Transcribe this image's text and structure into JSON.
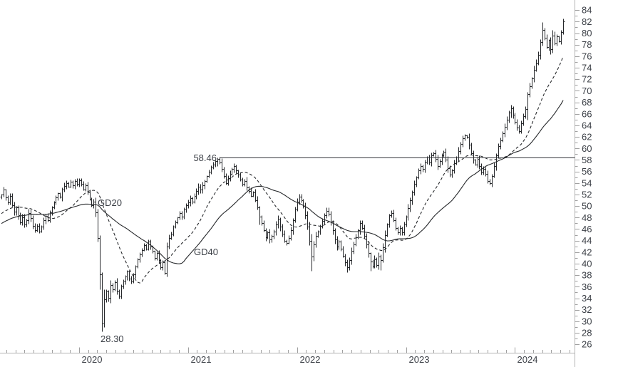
{
  "page": {
    "background": "#ffffff"
  },
  "colors": {
    "bar": "#26282b",
    "ma": "#26282b",
    "axis_line": "#b4b4b4",
    "tick": "#a0a0a0",
    "label": "#3b3f46",
    "annotation_line": "#34373b",
    "background": "#ffffff"
  },
  "annotations": {
    "resistance_label": "58.46",
    "low_label": "28.30",
    "gd20_label": "GD20",
    "gd40_label": "GD40"
  },
  "chart_data": {
    "type": "ohlc",
    "frequency": "weekly",
    "title": "",
    "grid": false,
    "legend": false,
    "ylim": [
      26,
      84
    ],
    "y_axis": {
      "side": "right",
      "min": 26,
      "max": 84,
      "step": 2,
      "minor_step": 1,
      "tick_labels": [
        "84",
        "82",
        "80",
        "78",
        "76",
        "74",
        "72",
        "70",
        "68",
        "66",
        "64",
        "62",
        "60",
        "58",
        "56",
        "54",
        "52",
        "50",
        "48",
        "46",
        "44",
        "42",
        "40",
        "38",
        "36",
        "34",
        "32",
        "30",
        "28",
        "26"
      ]
    },
    "x_axis": {
      "minor_ticks": "monthly",
      "year_ticks": [
        {
          "label": "2020",
          "week": 37
        },
        {
          "label": "2021",
          "week": 89
        },
        {
          "label": "2022",
          "week": 141
        },
        {
          "label": "2023",
          "week": 193
        },
        {
          "label": "2024",
          "week": 245
        }
      ]
    },
    "horizontal_line": {
      "value": 58.46,
      "from_week": 103
    },
    "low_point": {
      "value": 28.3,
      "week": 48
    },
    "overlays": [
      {
        "name": "GD20",
        "kind": "sma",
        "window": 20,
        "style": "dashed"
      },
      {
        "name": "GD40",
        "kind": "sma",
        "window": 40,
        "style": "solid"
      }
    ],
    "closes": [
      52.0,
      52.8,
      51.5,
      50.6,
      51.8,
      50.2,
      49.0,
      49.8,
      48.4,
      47.2,
      48.0,
      46.8,
      47.6,
      48.8,
      47.9,
      46.5,
      45.8,
      46.6,
      45.6,
      46.4,
      47.5,
      48.3,
      47.6,
      48.9,
      49.8,
      50.6,
      51.5,
      52.2,
      51.6,
      52.8,
      53.5,
      54.0,
      53.4,
      54.2,
      53.6,
      54.3,
      53.8,
      54.5,
      53.8,
      52.9,
      53.6,
      52.4,
      51.2,
      50.1,
      50.8,
      48.9,
      44.5,
      38.2,
      29.6,
      33.8,
      35.2,
      34.1,
      36.3,
      35.5,
      36.8,
      35.2,
      34.4,
      36.1,
      37.0,
      37.8,
      38.6,
      37.4,
      36.9,
      38.2,
      39.5,
      40.8,
      41.6,
      42.4,
      43.2,
      42.6,
      43.8,
      43.0,
      42.2,
      41.0,
      41.8,
      40.6,
      39.4,
      40.2,
      38.4,
      43.0,
      44.5,
      45.2,
      46.4,
      47.2,
      48.0,
      48.8,
      48.2,
      49.4,
      50.2,
      50.6,
      51.4,
      50.8,
      51.8,
      52.6,
      53.4,
      52.8,
      53.6,
      54.4,
      55.2,
      56.0,
      56.8,
      57.2,
      57.8,
      58.2,
      57.6,
      56.4,
      55.2,
      54.0,
      54.8,
      55.6,
      56.4,
      57.0,
      56.2,
      55.4,
      54.6,
      53.8,
      54.4,
      53.2,
      52.6,
      51.8,
      52.4,
      51.0,
      49.8,
      48.2,
      47.0,
      45.8,
      44.6,
      45.4,
      44.2,
      44.8,
      45.6,
      46.8,
      47.8,
      46.4,
      45.2,
      44.0,
      43.6,
      44.4,
      45.8,
      47.6,
      49.4,
      50.8,
      51.6,
      51.0,
      50.0,
      48.4,
      46.4,
      44.0,
      41.2,
      43.4,
      44.8,
      45.6,
      46.6,
      47.4,
      48.4,
      49.2,
      48.6,
      47.2,
      45.8,
      44.2,
      43.0,
      43.8,
      42.6,
      41.4,
      40.2,
      39.4,
      40.6,
      42.2,
      43.4,
      44.6,
      45.8,
      47.0,
      46.2,
      44.8,
      43.4,
      41.8,
      40.4,
      39.6,
      40.8,
      39.8,
      41.2,
      40.6,
      42.8,
      45.0,
      46.8,
      48.4,
      48.8,
      47.6,
      46.2,
      45.4,
      46.2,
      45.4,
      46.8,
      48.2,
      49.6,
      51.0,
      52.4,
      53.8,
      55.0,
      56.2,
      57.0,
      56.4,
      57.6,
      58.4,
      57.6,
      58.8,
      59.2,
      58.2,
      57.0,
      57.8,
      58.8,
      59.4,
      58.0,
      56.6,
      55.4,
      56.2,
      57.4,
      58.4,
      59.6,
      60.8,
      61.8,
      62.2,
      62.0,
      60.6,
      59.2,
      58.0,
      57.2,
      58.2,
      57.0,
      55.8,
      56.4,
      55.6,
      54.4,
      54.0,
      55.2,
      57.0,
      58.8,
      60.4,
      61.4,
      62.6,
      63.8,
      65.0,
      66.2,
      67.0,
      65.8,
      64.6,
      63.6,
      63.0,
      64.4,
      65.6,
      66.8,
      69.4,
      70.8,
      72.2,
      73.6,
      74.8,
      76.2,
      78.4,
      80.6,
      79.2,
      77.6,
      78.8,
      77.2,
      79.6,
      78.2,
      79.4,
      78.6,
      80.2,
      82.0
    ],
    "hl_overrides": {
      "37": [
        54.8,
        53.3
      ],
      "46": [
        49.5,
        43.8
      ],
      "47": [
        45.0,
        35.5
      ],
      "48": [
        38.5,
        28.3
      ],
      "49": [
        35.5,
        29.0
      ],
      "79": [
        43.7,
        37.8
      ],
      "103": [
        58.46,
        56.9
      ],
      "123": [
        50.0,
        46.8
      ],
      "148": [
        45.2,
        38.8
      ],
      "165": [
        40.8,
        38.5
      ],
      "176": [
        42.0,
        38.8
      ],
      "181": [
        41.6,
        38.9
      ],
      "243": [
        67.6,
        65.4
      ],
      "251": [
        69.8,
        65.0
      ],
      "258": [
        81.9,
        77.9
      ],
      "268": [
        82.6,
        79.8
      ]
    }
  }
}
